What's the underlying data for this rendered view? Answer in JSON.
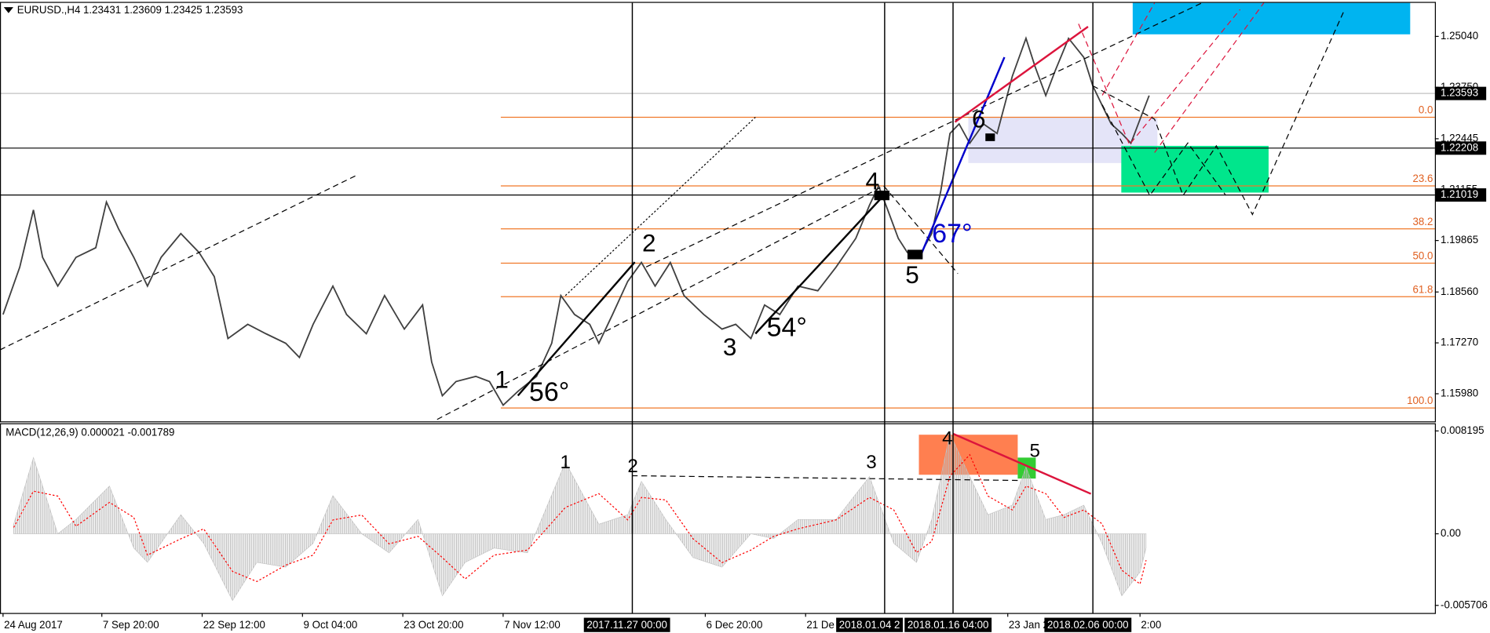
{
  "chart_data": [
    {
      "type": "line",
      "title": "EURUSD.,H4 1.23431 1.23609 1.23425 1.23593",
      "x": [
        2,
        13,
        22,
        28,
        38,
        50,
        63,
        70,
        78,
        88,
        97,
        106,
        119,
        131,
        141,
        150,
        163,
        175,
        188,
        197,
        206,
        219,
        228,
        241,
        253,
        266,
        278,
        284,
        291,
        300,
        313,
        322,
        331,
        341,
        353,
        363,
        369,
        378,
        388,
        394,
        403,
        413,
        422,
        431,
        441,
        450,
        463,
        475,
        484,
        494,
        503,
        513,
        525,
        538,
        550,
        563,
        572,
        578,
        584,
        591,
        597,
        605,
        613,
        619,
        625,
        631,
        638,
        647,
        656,
        666,
        675,
        681,
        688,
        694,
        703,
        713,
        719,
        725,
        731,
        738,
        744,
        750,
        756
      ],
      "series": [
        {
          "color": "#404040",
          "values": [
            1.1799,
            1.1919,
            1.2064,
            1.1944,
            1.1871,
            1.1944,
            1.1968,
            1.2084,
            1.2016,
            1.1944,
            1.1871,
            1.1944,
            1.2004,
            1.1956,
            1.1895,
            1.1738,
            1.1774,
            1.175,
            1.1726,
            1.169,
            1.1774,
            1.1871,
            1.1799,
            1.175,
            1.1847,
            1.1762,
            1.1823,
            1.1678,
            1.1593,
            1.1629,
            1.1642,
            1.1629,
            1.1569,
            1.1605,
            1.1642,
            1.1726,
            1.1847,
            1.1799,
            1.1774,
            1.1726,
            1.1799,
            1.1883,
            1.1931,
            1.1871,
            1.1931,
            1.1847,
            1.1799,
            1.1762,
            1.1774,
            1.1738,
            1.1823,
            1.1799,
            1.1871,
            1.1859,
            1.1919,
            1.1992,
            1.2076,
            1.2125,
            1.2064,
            1.1992,
            1.1956,
            1.1948,
            1.2004,
            1.2113,
            1.2258,
            1.2282,
            1.2233,
            1.2282,
            1.2258,
            1.2403,
            1.2499,
            1.2427,
            1.2354,
            1.2415,
            1.2499,
            1.2451,
            1.2378,
            1.233,
            1.2282,
            1.2258,
            1.2233,
            1.2294,
            1.2354
          ]
        }
      ],
      "xlim": [
        0,
        944
      ],
      "ylim": [
        1.1528,
        1.2589
      ],
      "yticks": [
        {
          "value": 1.1598,
          "label": "1.15980"
        },
        {
          "value": 1.1727,
          "label": "1.17270"
        },
        {
          "value": 1.1856,
          "label": "1.18560"
        },
        1.19865,
        1.21155,
        1.22445,
        {
          "value": 1.2375,
          "label": "1.23750"
        },
        {
          "value": 1.2504,
          "label": "1.25040"
        }
      ],
      "xticks": [
        {
          "value": 2,
          "label": "24 Aug 2017"
        },
        {
          "value": 67,
          "label": "7 Sep 20:00"
        },
        {
          "value": 133,
          "label": "22 Sep 12:00"
        },
        {
          "value": 199,
          "label": "9 Oct 04:00"
        },
        {
          "value": 265,
          "label": "23 Oct 20:00"
        },
        {
          "value": 331,
          "label": "7 Nov 12:00"
        },
        {
          "value": 464,
          "label": "6 Dec 20:00"
        },
        {
          "value": 530,
          "label": "21 De"
        },
        {
          "value": 663,
          "label": "23 Jan 2"
        },
        {
          "value": 750,
          "label": "2:00"
        }
      ],
      "marked_times": [
        {
          "value": 416,
          "label": "2017.11.27 00:00"
        },
        {
          "value": 582,
          "label": "2018.01.04 2"
        },
        {
          "value": 627,
          "label": "2018.01.16 04:00"
        },
        {
          "value": 719,
          "label": "2018.02.06 00:00"
        }
      ],
      "price_lines": [
        1.23593,
        1.22208,
        1.21019
      ],
      "fib_levels": [
        {
          "value": 0,
          "label": "0.0"
        },
        23.6,
        38.2,
        {
          "value": 50,
          "label": "50.0"
        },
        61.8,
        {
          "value": 100,
          "label": "100.0"
        }
      ],
      "fib_prices": [
        1.2299,
        1.2125,
        1.2016,
        1.1929,
        1.1844,
        1.1562
      ],
      "annotations": [
        "1",
        "2",
        "3",
        "4",
        "5",
        "6",
        "56°",
        "54°",
        "67°"
      ]
    },
    {
      "type": "macd",
      "title": "MACD(12,26,9) 0.000021 -0.001789",
      "x": [
        9,
        22,
        38,
        50,
        72,
        88,
        97,
        119,
        134,
        153,
        169,
        188,
        206,
        219,
        238,
        256,
        275,
        291,
        306,
        325,
        347,
        372,
        394,
        413,
        422,
        438,
        456,
        475,
        494,
        509,
        525,
        550,
        572,
        588,
        603,
        613,
        625,
        638,
        650,
        666,
        675,
        688,
        700,
        713,
        725,
        738,
        750,
        754
      ],
      "series": [
        {
          "color": "#c0c0c0",
          "values": [
            0.00076,
            0.00608,
            0,
            0.00114,
            0.0038,
            -0.00114,
            -0.00228,
            0.00152,
            -0.00076,
            -0.00532,
            -0.00228,
            -0.00266,
            -0.00076,
            0.00304,
            0,
            -0.00152,
            0.00114,
            -0.00494,
            -0.00228,
            -0.00114,
            -0.00152,
            0.0057,
            0.00076,
            0.00152,
            0.00418,
            0.00114,
            -0.0019,
            -0.00266,
            0,
            -0.00038,
            0.00114,
            0.00114,
            0.00456,
            -0.00076,
            -0.00228,
            0.00114,
            0.00798,
            0.00456,
            0.00152,
            0.00228,
            0.00532,
            0.00114,
            0.00152,
            0.00228,
            -0.00076,
            -0.00494,
            -0.00304,
            -0.00114
          ]
        },
        {
          "color": "#ff0000",
          "values": [
            0.0005,
            0.0034,
            0.003,
            0.0006,
            0.0025,
            0.0013,
            -0.0017,
            -0.0004,
            0.0004,
            -0.003,
            -0.0038,
            -0.0025,
            -0.0017,
            0.0011,
            0.0015,
            -0.0008,
            -0.0002,
            -0.0019,
            -0.0036,
            -0.0017,
            -0.0013,
            0.0021,
            0.0032,
            0.0011,
            0.0029,
            0.0027,
            -0.0004,
            -0.0023,
            -0.0013,
            -0.0002,
            0.0004,
            0.0011,
            0.0029,
            0.0019,
            -0.0015,
            -0.0006,
            0.0046,
            0.0063,
            0.003,
            0.0019,
            0.0038,
            0.0032,
            0.0013,
            0.0019,
            0.0008,
            -0.0029,
            -0.004,
            -0.0021
          ]
        }
      ],
      "xlim": [
        0,
        944
      ],
      "ylim": [
        -0.00631,
        0.00873
      ],
      "yticks": [
        0.008195,
        {
          "value": 0,
          "label": "0.00"
        },
        -0.005706
      ],
      "annotations": [
        "1",
        "2",
        "3",
        "4",
        "5"
      ]
    }
  ]
}
